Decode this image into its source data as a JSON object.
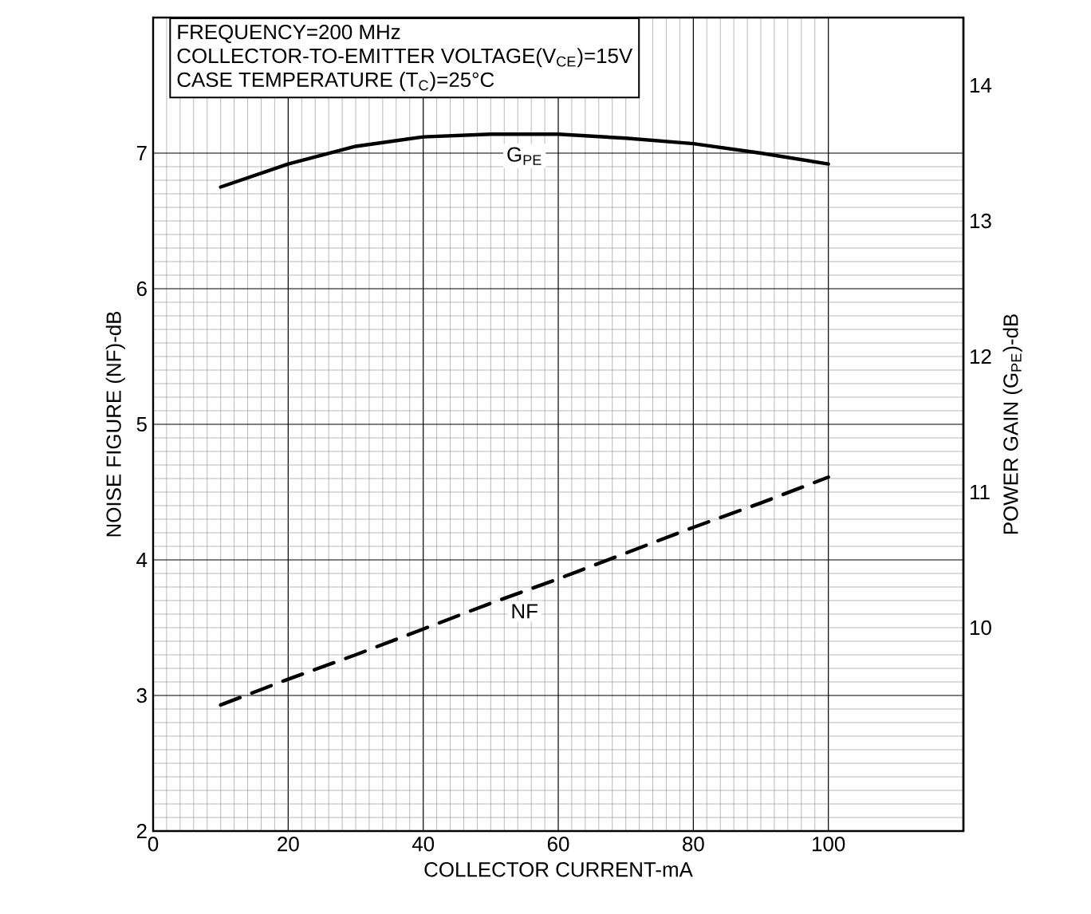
{
  "chart_data": {
    "type": "line",
    "xlabel": "COLLECTOR CURRENT-mA",
    "ylabel": "NOISE FIGURE (NF)-dB",
    "y2label": "POWER GAIN (G$_{PE}$)-dB",
    "annotations": [
      "FREQUENCY=200 MHz",
      "COLLECTOR-TO-EMITTER VOLTAGE(V$_{CE}$)=15V",
      "CASE TEMPERATURE (T$_{C}$)=25°C"
    ],
    "x": [
      10,
      20,
      30,
      40,
      50,
      60,
      70,
      80,
      90,
      100
    ],
    "series": [
      {
        "name": "G$_{PE}$",
        "color": "#000000",
        "axis": "y2",
        "line_style": "solid",
        "values": [
          13.25,
          13.42,
          13.55,
          13.62,
          13.64,
          13.64,
          13.61,
          13.57,
          13.5,
          13.42
        ]
      },
      {
        "name": "NF",
        "color": "#000000",
        "axis": "y",
        "line_style": "dashed",
        "values": [
          2.93,
          3.12,
          3.3,
          3.49,
          3.68,
          3.86,
          4.05,
          4.24,
          4.42,
          4.61
        ]
      }
    ],
    "xlim": [
      0,
      120
    ],
    "xticks": [
      0,
      20,
      40,
      60,
      80,
      100
    ],
    "ylim": [
      2,
      8
    ],
    "yticks": [
      2,
      3,
      4,
      5,
      6,
      7
    ],
    "y2lim": [
      8.5,
      14.5
    ],
    "y2ticks": [
      10,
      11,
      12,
      13,
      14
    ],
    "grid": true,
    "marker": "none"
  }
}
